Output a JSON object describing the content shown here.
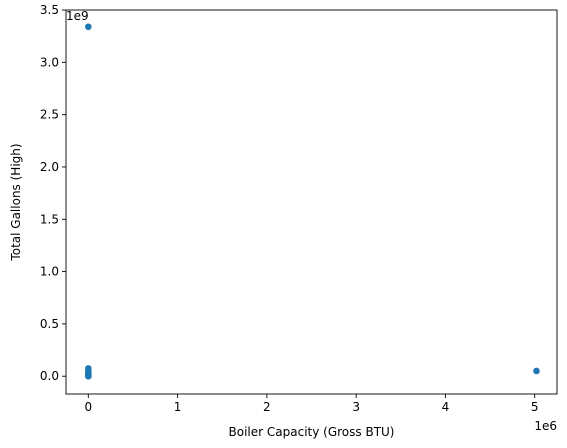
{
  "chart_data": {
    "type": "scatter",
    "xlabel": "Boiler Capacity (Gross  BTU)",
    "ylabel": "Total Gallons (High)",
    "x_multiplier": "1e6",
    "y_multiplier": "1e9",
    "xlim": [
      -0.25,
      5.25
    ],
    "ylim": [
      -0.17,
      3.5
    ],
    "x_ticks": [
      0,
      1,
      2,
      3,
      4,
      5
    ],
    "x_tick_labels": [
      "0",
      "1",
      "2",
      "3",
      "4",
      "5"
    ],
    "y_ticks": [
      0.0,
      0.5,
      1.0,
      1.5,
      2.0,
      2.5,
      3.0,
      3.5
    ],
    "y_tick_labels": [
      "0.0",
      "0.5",
      "1.0",
      "1.5",
      "2.0",
      "2.5",
      "3.0",
      "3.5"
    ],
    "grid": false,
    "marker_color": "#1f77b4",
    "series": [
      {
        "x": [
          0,
          0,
          0,
          0,
          0,
          0,
          0,
          0,
          0,
          0,
          0,
          0,
          5.02
        ],
        "y": [
          3.34,
          0.075,
          0.05,
          0.03,
          0.02,
          0.012,
          0.008,
          0.005,
          0.003,
          0.002,
          0.001,
          0.0,
          0.05
        ]
      }
    ]
  }
}
